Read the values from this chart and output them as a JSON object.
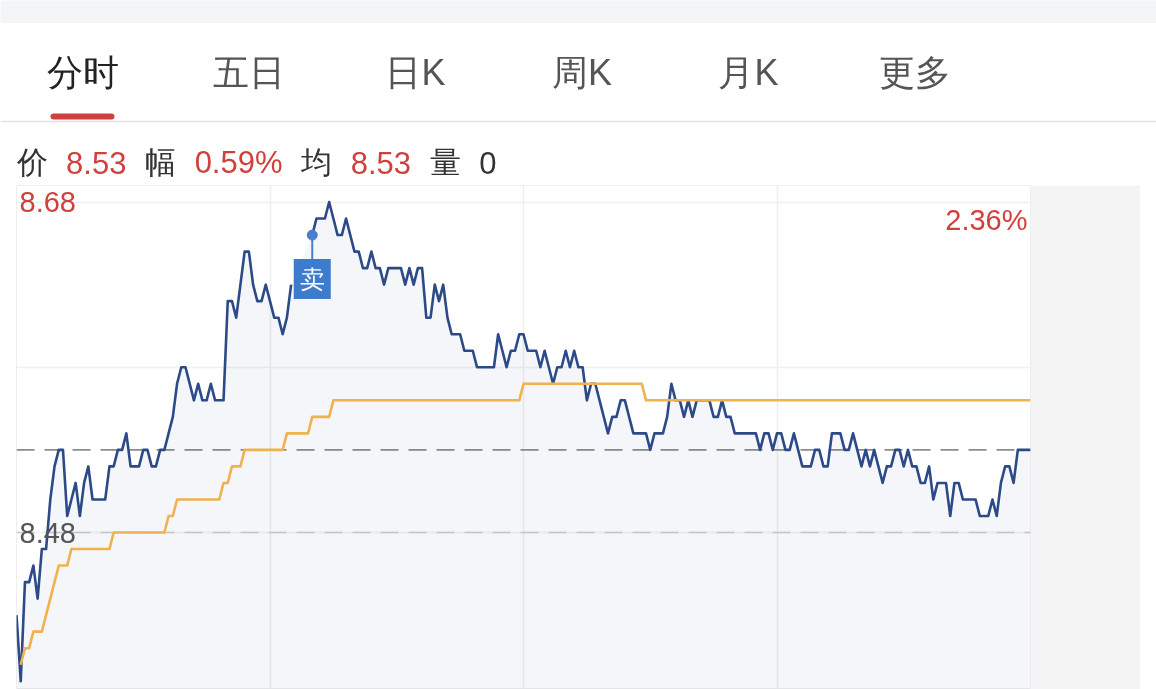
{
  "chart_data": {
    "type": "area",
    "subtitle": "价 8.53 幅 0.59% 均 8.53 量 0",
    "annotations": [
      "分时",
      "五日",
      "日K",
      "周K",
      "月K",
      "更多",
      "2.36%",
      {
        "text": "卖",
        "y": 8.66
      }
    ],
    "categories": [
      null,
      null,
      null,
      null,
      null,
      null,
      null,
      null,
      null,
      null,
      null,
      null,
      null,
      null,
      null,
      null,
      null,
      null,
      null,
      null,
      null,
      null,
      null,
      null,
      null,
      null,
      null,
      null,
      null,
      null,
      null,
      null,
      null,
      null,
      null,
      null,
      null,
      null,
      null,
      null,
      null,
      null,
      null,
      null,
      null,
      null,
      null,
      null,
      null,
      null,
      null,
      null,
      null,
      null,
      null,
      null,
      null,
      null,
      null,
      null,
      null,
      null,
      null,
      null,
      null,
      null,
      null,
      null,
      null,
      null,
      null,
      null,
      null,
      null,
      null,
      null,
      null,
      null,
      null,
      null,
      null,
      null,
      null,
      null,
      null,
      null,
      null,
      null,
      null,
      null,
      null,
      null,
      null,
      null,
      null,
      null,
      null,
      null,
      null,
      null,
      null,
      null,
      null,
      null,
      null,
      null,
      null,
      null,
      null,
      null,
      null,
      null,
      null,
      null,
      null,
      null,
      null,
      null,
      null,
      null,
      null,
      null,
      null,
      null,
      null,
      null,
      null,
      null,
      null,
      null,
      null,
      null,
      null,
      null,
      null,
      null,
      null,
      null,
      null,
      null,
      null,
      null,
      null,
      null,
      null,
      null,
      null,
      null,
      null,
      null,
      null,
      null,
      null,
      null,
      null,
      null,
      null,
      null,
      null,
      null,
      null,
      null,
      null,
      null,
      null,
      null,
      null,
      null,
      null,
      null,
      null,
      null,
      null,
      null,
      null,
      null,
      null,
      null,
      null,
      null,
      null,
      null,
      null,
      null,
      null,
      null,
      null,
      null,
      null,
      null,
      null,
      null,
      null,
      null,
      null,
      null,
      null,
      null,
      null,
      null,
      null,
      null,
      null,
      null,
      null,
      null,
      null,
      null,
      null,
      null,
      null,
      null,
      null,
      null,
      null,
      null,
      null,
      null,
      null,
      null,
      null,
      null,
      null,
      null,
      null,
      null,
      null,
      null,
      null,
      null,
      null,
      null,
      null,
      null,
      null,
      null,
      null,
      null,
      null,
      null,
      null
    ],
    "ylim": [
      8.385,
      8.69
    ],
    "yticks": [
      8.68,
      {
        "value": 8.58,
        "label": null
      },
      8.48
    ],
    "grid": true,
    "ref_lines": [
      {
        "axis": "y",
        "value": 8.53,
        "color": "#8c8c8c",
        "line_style": "dashed"
      },
      {
        "axis": "y",
        "value": 8.48,
        "color": "#cccccc",
        "line_style": "dashed"
      }
    ],
    "series": [
      {
        "color": "#2c4a87",
        "values": [
          8.43,
          8.39,
          8.45,
          8.45,
          8.46,
          8.44,
          8.47,
          8.47,
          8.5,
          8.52,
          8.53,
          8.53,
          8.49,
          8.5,
          8.51,
          8.49,
          8.51,
          8.52,
          8.5,
          8.5,
          8.5,
          8.5,
          8.52,
          8.52,
          8.53,
          8.53,
          8.54,
          8.52,
          8.52,
          8.52,
          8.53,
          8.53,
          8.52,
          8.52,
          8.53,
          8.53,
          8.54,
          8.55,
          8.57,
          8.58,
          8.58,
          8.57,
          8.56,
          8.57,
          8.56,
          8.56,
          8.57,
          8.56,
          8.56,
          8.56,
          8.62,
          8.62,
          8.61,
          8.63,
          8.65,
          8.65,
          8.63,
          8.62,
          8.62,
          8.63,
          8.62,
          8.61,
          8.61,
          8.6,
          8.61,
          8.63,
          null,
          null,
          null,
          null,
          8.66,
          8.67,
          8.67,
          8.67,
          8.68,
          8.67,
          8.66,
          8.66,
          8.67,
          8.66,
          8.65,
          8.65,
          8.64,
          8.64,
          8.65,
          8.64,
          8.64,
          8.63,
          8.64,
          8.64,
          8.64,
          8.64,
          8.63,
          8.64,
          8.63,
          8.64,
          8.64,
          8.61,
          8.61,
          8.63,
          8.62,
          8.63,
          8.61,
          8.6,
          8.6,
          8.6,
          8.59,
          8.59,
          8.59,
          8.58,
          8.58,
          8.58,
          8.58,
          8.58,
          8.6,
          8.59,
          8.58,
          8.59,
          8.59,
          8.6,
          8.6,
          8.59,
          8.59,
          8.59,
          8.58,
          8.59,
          8.58,
          8.57,
          8.58,
          8.58,
          8.59,
          8.58,
          8.59,
          8.58,
          8.58,
          8.56,
          8.57,
          8.57,
          8.56,
          8.55,
          8.54,
          8.55,
          8.55,
          8.56,
          8.56,
          8.55,
          8.54,
          8.54,
          8.54,
          8.54,
          8.53,
          8.54,
          8.54,
          8.54,
          8.55,
          8.57,
          8.56,
          8.56,
          8.55,
          8.56,
          8.55,
          8.56,
          8.56,
          8.56,
          8.56,
          8.55,
          8.55,
          8.56,
          8.55,
          8.55,
          8.54,
          8.54,
          8.54,
          8.54,
          8.54,
          8.54,
          8.53,
          8.54,
          8.54,
          8.53,
          8.54,
          8.54,
          8.53,
          8.53,
          8.54,
          8.53,
          8.52,
          8.52,
          8.52,
          8.53,
          8.53,
          8.52,
          8.52,
          8.54,
          8.54,
          8.54,
          8.53,
          8.53,
          8.54,
          8.53,
          8.52,
          8.53,
          8.52,
          8.53,
          8.52,
          8.51,
          8.52,
          8.52,
          8.53,
          8.53,
          8.52,
          8.53,
          8.52,
          8.52,
          8.51,
          8.51,
          8.52,
          8.5,
          8.51,
          8.51,
          8.51,
          8.49,
          8.51,
          8.51,
          8.5,
          8.5,
          8.5,
          8.5,
          8.49,
          8.49,
          8.49,
          8.5,
          8.49,
          8.51,
          8.52,
          8.52,
          8.51,
          8.53,
          8.53,
          8.53,
          8.53
        ]
      },
      {
        "type": "line",
        "color": "#f0b14f",
        "values": [
          null,
          8.4,
          8.41,
          8.41,
          8.42,
          8.42,
          8.42,
          8.43,
          8.44,
          8.45,
          8.46,
          8.46,
          8.46,
          8.47,
          8.47,
          8.47,
          8.47,
          8.47,
          8.47,
          8.47,
          8.47,
          8.47,
          8.47,
          8.48,
          8.48,
          8.48,
          8.48,
          8.48,
          8.48,
          8.48,
          8.48,
          8.48,
          8.48,
          8.48,
          8.48,
          8.48,
          8.49,
          8.49,
          8.5,
          8.5,
          8.5,
          8.5,
          8.5,
          8.5,
          8.5,
          8.5,
          8.5,
          8.5,
          8.5,
          8.51,
          8.51,
          8.52,
          8.52,
          8.52,
          8.53,
          8.53,
          8.53,
          8.53,
          8.53,
          8.53,
          8.53,
          8.53,
          8.53,
          8.53,
          8.54,
          8.54,
          8.54,
          8.54,
          8.54,
          8.54,
          8.55,
          8.55,
          8.55,
          8.55,
          8.55,
          8.56,
          8.56,
          8.56,
          8.56,
          8.56,
          8.56,
          8.56,
          8.56,
          8.56,
          8.56,
          8.56,
          8.56,
          8.56,
          8.56,
          8.56,
          8.56,
          8.56,
          8.56,
          8.56,
          8.56,
          8.56,
          8.56,
          8.56,
          8.56,
          8.56,
          8.56,
          8.56,
          8.56,
          8.56,
          8.56,
          8.56,
          8.56,
          8.56,
          8.56,
          8.56,
          8.56,
          8.56,
          8.56,
          8.56,
          8.56,
          8.56,
          8.56,
          8.56,
          8.56,
          8.56,
          8.57,
          8.57,
          8.57,
          8.57,
          8.57,
          8.57,
          8.57,
          8.57,
          8.57,
          8.57,
          8.57,
          8.57,
          8.57,
          8.57,
          8.57,
          8.57,
          8.57,
          8.57,
          8.57,
          8.57,
          8.57,
          8.57,
          8.57,
          8.57,
          8.57,
          8.57,
          8.57,
          8.57,
          8.57,
          8.56,
          8.56,
          8.56,
          8.56,
          8.56,
          8.56,
          8.56,
          8.56,
          8.56,
          8.56,
          8.56,
          8.56,
          8.56,
          8.56,
          8.56,
          8.56,
          8.56,
          8.56,
          8.56,
          8.56,
          8.56,
          8.56,
          8.56,
          8.56,
          8.56,
          8.56,
          8.56,
          8.56,
          8.56,
          8.56,
          8.56,
          8.56,
          8.56,
          8.56,
          8.56,
          8.56,
          8.56,
          8.56,
          8.56,
          8.56,
          8.56,
          8.56,
          8.56,
          8.56,
          8.56,
          8.56,
          8.56,
          8.56,
          8.56,
          8.56,
          8.56,
          8.56,
          8.56,
          8.56,
          8.56,
          8.56,
          8.56,
          8.56,
          8.56,
          8.56,
          8.56,
          8.56,
          8.56,
          8.56,
          8.56,
          8.56,
          8.56,
          8.56,
          8.56,
          8.56,
          8.56,
          8.56,
          8.56,
          8.56,
          8.56,
          8.56,
          8.56,
          8.56,
          8.56,
          8.56,
          8.56,
          8.56,
          8.56,
          8.56,
          8.56,
          8.56,
          8.56,
          8.56,
          8.56,
          8.56,
          8.56,
          8.56
        ]
      }
    ]
  }
}
